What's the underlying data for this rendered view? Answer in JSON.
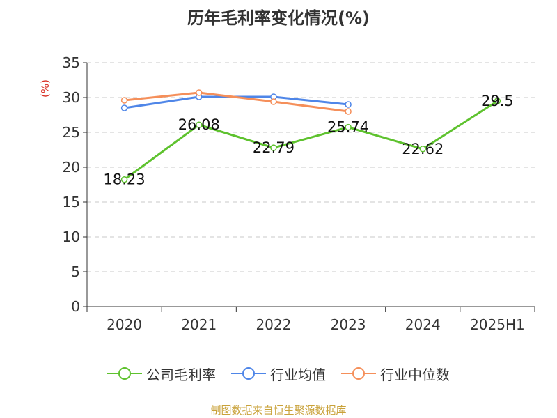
{
  "chart_data": {
    "type": "line",
    "title": "历年毛利率变化情况(%)",
    "ylabel": "(%)",
    "xlabel": "",
    "categories": [
      "2020",
      "2021",
      "2022",
      "2023",
      "2024",
      "2025H1"
    ],
    "ylim": [
      0,
      35
    ],
    "yticks": [
      0,
      5,
      10,
      15,
      20,
      25,
      30,
      35
    ],
    "grid": true,
    "legend_position": "bottom",
    "series": [
      {
        "name": "公司毛利率",
        "color": "#5ec22e",
        "values": [
          18.23,
          26.08,
          22.79,
          25.74,
          22.62,
          29.5
        ],
        "labels": [
          "18.23",
          "26.08",
          "22.79",
          "25.74",
          "22.62",
          "29.5"
        ]
      },
      {
        "name": "行业均值",
        "color": "#4f86e8",
        "values": [
          28.5,
          30.1,
          30.1,
          29.0,
          null,
          null
        ]
      },
      {
        "name": "行业中位数",
        "color": "#f58f5a",
        "values": [
          29.6,
          30.7,
          29.4,
          28.0,
          null,
          null
        ]
      }
    ]
  },
  "source": "制图数据来自恒生聚源数据库"
}
